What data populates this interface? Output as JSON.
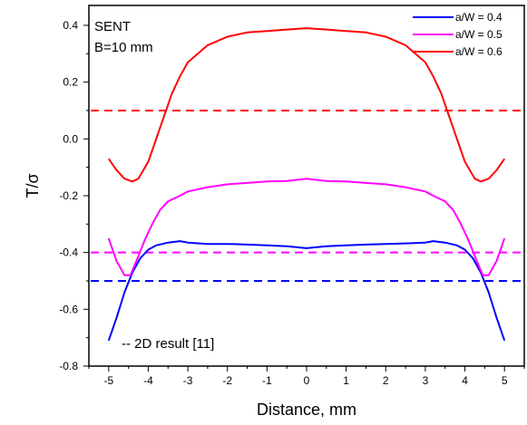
{
  "chart_data": {
    "type": "line",
    "xlabel": "Distance, mm",
    "ylabel": "T/σ",
    "xlim": [
      -5.5,
      5.5
    ],
    "ylim": [
      -0.8,
      0.47
    ],
    "xticks": [
      -5,
      -4,
      -3,
      -2,
      -1,
      0,
      1,
      2,
      3,
      4,
      5
    ],
    "yticks": [
      -0.8,
      -0.6,
      -0.4,
      -0.2,
      0.0,
      0.2,
      0.4
    ],
    "ytick_labels": [
      "-0.8",
      "-0.6",
      "-0.4",
      "-0.2",
      "0.0",
      "0.2",
      "0.4"
    ],
    "grid": false,
    "legend_position": "top-right",
    "annotations": {
      "text_top_left_line1": "SENT",
      "text_top_left_line2": "B=10 mm",
      "text_bottom_left": "-- 2D result [11]"
    },
    "series": [
      {
        "name": "a/W = 0.4",
        "color": "#0000ff",
        "x": [
          -5.0,
          -4.8,
          -4.6,
          -4.4,
          -4.2,
          -4.0,
          -3.8,
          -3.5,
          -3.2,
          -3.0,
          -2.5,
          -2.0,
          -1.5,
          -1.0,
          -0.5,
          0.0,
          0.5,
          1.0,
          1.5,
          2.0,
          2.5,
          3.0,
          3.2,
          3.5,
          3.8,
          4.0,
          4.2,
          4.4,
          4.6,
          4.8,
          5.0
        ],
        "y": [
          -0.71,
          -0.63,
          -0.54,
          -0.47,
          -0.42,
          -0.39,
          -0.375,
          -0.365,
          -0.36,
          -0.365,
          -0.37,
          -0.37,
          -0.372,
          -0.375,
          -0.378,
          -0.385,
          -0.378,
          -0.375,
          -0.372,
          -0.37,
          -0.368,
          -0.365,
          -0.36,
          -0.365,
          -0.375,
          -0.39,
          -0.42,
          -0.47,
          -0.54,
          -0.63,
          -0.71
        ]
      },
      {
        "name": "a/W = 0.5",
        "color": "#ff00ff",
        "x": [
          -5.0,
          -4.8,
          -4.6,
          -4.45,
          -4.3,
          -4.1,
          -3.9,
          -3.7,
          -3.5,
          -3.2,
          -3.0,
          -2.5,
          -2.0,
          -1.5,
          -1.0,
          -0.5,
          0.0,
          0.5,
          1.0,
          1.5,
          2.0,
          2.5,
          3.0,
          3.2,
          3.5,
          3.7,
          3.9,
          4.1,
          4.3,
          4.45,
          4.6,
          4.8,
          5.0
        ],
        "y": [
          -0.35,
          -0.43,
          -0.48,
          -0.48,
          -0.43,
          -0.36,
          -0.3,
          -0.25,
          -0.22,
          -0.2,
          -0.185,
          -0.17,
          -0.16,
          -0.155,
          -0.15,
          -0.148,
          -0.14,
          -0.148,
          -0.15,
          -0.155,
          -0.16,
          -0.17,
          -0.185,
          -0.2,
          -0.22,
          -0.25,
          -0.3,
          -0.36,
          -0.43,
          -0.48,
          -0.48,
          -0.43,
          -0.35
        ]
      },
      {
        "name": "a/W = 0.6",
        "color": "#ff0000",
        "x": [
          -5.0,
          -4.8,
          -4.6,
          -4.4,
          -4.25,
          -4.0,
          -3.8,
          -3.6,
          -3.4,
          -3.2,
          -3.0,
          -2.5,
          -2.0,
          -1.5,
          -1.0,
          -0.5,
          0.0,
          0.5,
          1.0,
          1.5,
          2.0,
          2.5,
          3.0,
          3.2,
          3.4,
          3.6,
          3.8,
          4.0,
          4.25,
          4.4,
          4.6,
          4.8,
          5.0
        ],
        "y": [
          -0.07,
          -0.11,
          -0.14,
          -0.15,
          -0.14,
          -0.08,
          0.0,
          0.08,
          0.16,
          0.22,
          0.27,
          0.33,
          0.36,
          0.375,
          0.38,
          0.385,
          0.39,
          0.385,
          0.38,
          0.375,
          0.36,
          0.33,
          0.27,
          0.22,
          0.16,
          0.08,
          0.0,
          -0.08,
          -0.14,
          -0.15,
          -0.14,
          -0.11,
          -0.07
        ]
      }
    ],
    "reference_lines": [
      {
        "color": "#ff0000",
        "style": "dashed",
        "y": 0.1
      },
      {
        "color": "#ff00ff",
        "style": "dashed",
        "y": -0.4
      },
      {
        "color": "#0000ff",
        "style": "dashed",
        "y": -0.5
      }
    ]
  }
}
